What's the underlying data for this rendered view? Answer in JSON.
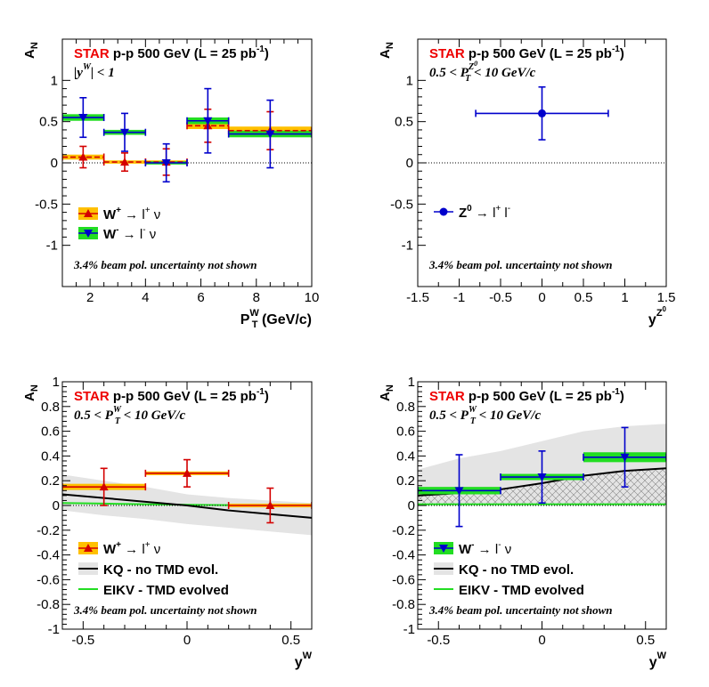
{
  "header": {
    "star": "STAR",
    "collision": "p-p 500 GeV (L = 25 pb",
    "lumi_sup": "-1",
    "close": ")"
  },
  "colors": {
    "w_plus": "#d40000",
    "w_minus": "#0000cc",
    "z0": "#0000cc",
    "w_plus_band": "#ffc000",
    "w_minus_band": "#22dd22",
    "kq_band": "#e4e4e4",
    "kq_line": "#000000",
    "eikv_line": "#22dd22"
  },
  "chart_data": [
    {
      "id": "pt",
      "type": "scatter",
      "ylabel": "A",
      "ylabel_sub": "N",
      "xlabel": "P",
      "xlabel_sub": "T",
      "xlabel_sup": "W",
      "xlabel_unit": "(GeV/c)",
      "cut": "|y",
      "cut_sup": "W",
      "cut_tail": "| < 1",
      "note": "3.4% beam pol. uncertainty not shown",
      "xlim": [
        1,
        10
      ],
      "ylim": [
        -1.5,
        1.5
      ],
      "xticks": [
        "2",
        "4",
        "6",
        "8",
        "10"
      ],
      "yticks": [
        "-1",
        "-0.5",
        "0",
        "0.5",
        "1"
      ],
      "legend": [
        {
          "label": "W",
          "sup": "+",
          "arrow": "→ l",
          "sup2": "+",
          "tail": "ν",
          "series": "W+"
        },
        {
          "label": "W",
          "sup": "-",
          "arrow": "→ l",
          "sup2": "-",
          "tail": "ν",
          "series": "W-"
        }
      ],
      "series": [
        {
          "name": "W+",
          "x": [
            1.75,
            3.25,
            4.75,
            6.25,
            8.5
          ],
          "y": [
            0.07,
            0.01,
            0.01,
            0.45,
            0.39
          ],
          "xerr": [
            0.75,
            0.75,
            0.75,
            0.75,
            1.5
          ],
          "yerr": [
            0.13,
            0.11,
            0.16,
            0.2,
            0.23
          ],
          "sys": [
            0.03,
            0.02,
            0.02,
            0.04,
            0.05
          ]
        },
        {
          "name": "W-",
          "x": [
            1.75,
            3.25,
            4.75,
            6.25,
            8.5
          ],
          "y": [
            0.55,
            0.37,
            0.0,
            0.51,
            0.35
          ],
          "xerr": [
            0.75,
            0.75,
            0.75,
            0.75,
            1.5
          ],
          "yerr": [
            0.24,
            0.23,
            0.23,
            0.39,
            0.41
          ],
          "sys": [
            0.04,
            0.03,
            0.02,
            0.04,
            0.04
          ]
        }
      ]
    },
    {
      "id": "z",
      "type": "scatter",
      "ylabel": "A",
      "ylabel_sub": "N",
      "xlabel": "y",
      "xlabel_sup": "Z",
      "xlabel_sup2": "0",
      "cut": "0.5 < P",
      "cut_sub": "T",
      "cut_sup": "Z",
      "cut_sup2": "0",
      "cut_tail": "< 10 GeV/c",
      "note": "3.4% beam pol. uncertainty not shown",
      "xlim": [
        -1.5,
        1.5
      ],
      "ylim": [
        -1.5,
        1.5
      ],
      "xticks": [
        "-1.5",
        "-1",
        "-0.5",
        "0",
        "0.5",
        "1",
        "1.5"
      ],
      "yticks": [
        "-1",
        "-0.5",
        "0",
        "0.5",
        "1"
      ],
      "legend": [
        {
          "label": "Z",
          "sup": "0",
          "arrow": "→ l",
          "sup2": "+",
          "tail": "l",
          "sup3": "-",
          "series": "Z0"
        }
      ],
      "series": [
        {
          "name": "Z0",
          "x": [
            0.0
          ],
          "y": [
            0.6
          ],
          "xerr": [
            0.8
          ],
          "yerr": [
            0.32
          ]
        }
      ]
    },
    {
      "id": "yplus",
      "type": "scatter",
      "ylabel": "A",
      "ylabel_sub": "N",
      "xlabel": "y",
      "xlabel_sup": "W",
      "cut": "0.5 < P",
      "cut_sub": "T",
      "cut_sup": "W",
      "cut_tail": "< 10 GeV/c",
      "note": "3.4% beam pol. uncertainty not shown",
      "xlim": [
        -0.6,
        0.6
      ],
      "ylim": [
        -1,
        1
      ],
      "xticks": [
        "-0.5",
        "0",
        "0.5"
      ],
      "yticks": [
        "-1",
        "-0.8",
        "-0.6",
        "-0.4",
        "-0.2",
        "0",
        "0.2",
        "0.4",
        "0.6",
        "0.8",
        "1"
      ],
      "legend": [
        {
          "label": "W",
          "sup": "+",
          "arrow": "→ l",
          "sup2": "+",
          "tail": "ν",
          "series": "W+"
        },
        {
          "label": "KQ - no TMD evol.",
          "series": "KQ"
        },
        {
          "label": "EIKV - TMD evolved",
          "series": "EIKV"
        }
      ],
      "series": [
        {
          "name": "W+",
          "x": [
            -0.4,
            0.0,
            0.4
          ],
          "y": [
            0.15,
            0.26,
            0.0
          ],
          "xerr": [
            0.2,
            0.2,
            0.2
          ],
          "yerr": [
            0.15,
            0.11,
            0.14
          ],
          "sys": [
            0.025,
            0.015,
            0.015
          ]
        }
      ],
      "curves": {
        "x": [
          -0.6,
          -0.4,
          -0.2,
          0.0,
          0.2,
          0.4,
          0.6
        ],
        "kq": [
          0.09,
          0.06,
          0.03,
          0.0,
          -0.04,
          -0.07,
          -0.1
        ],
        "kq_low": [
          -0.04,
          -0.08,
          -0.11,
          -0.15,
          -0.18,
          -0.21,
          -0.24
        ],
        "kq_high": [
          0.25,
          0.2,
          0.15,
          0.09,
          0.06,
          0.04,
          0.02
        ],
        "eikv": [
          0.02,
          0.015,
          0.01,
          0.005,
          0.003,
          0.002,
          0.001
        ]
      }
    },
    {
      "id": "yminus",
      "type": "scatter",
      "ylabel": "A",
      "ylabel_sub": "N",
      "xlabel": "y",
      "xlabel_sup": "W",
      "cut": "0.5 < P",
      "cut_sub": "T",
      "cut_sup": "W",
      "cut_tail": "< 10 GeV/c",
      "note": "3.4% beam pol. uncertainty not shown",
      "xlim": [
        -0.6,
        0.6
      ],
      "ylim": [
        -1,
        1
      ],
      "xticks": [
        "-0.5",
        "0",
        "0.5"
      ],
      "yticks": [
        "-1",
        "-0.8",
        "-0.6",
        "-0.4",
        "-0.2",
        "0",
        "0.2",
        "0.4",
        "0.6",
        "0.8",
        "1"
      ],
      "legend": [
        {
          "label": "W",
          "sup": "-",
          "arrow": "→ l",
          "sup2": "-",
          "tail": "ν",
          "series": "W-"
        },
        {
          "label": "KQ - no TMD evol.",
          "series": "KQ"
        },
        {
          "label": "EIKV - TMD evolved",
          "series": "EIKV"
        }
      ],
      "series": [
        {
          "name": "W-",
          "x": [
            -0.4,
            0.0,
            0.4
          ],
          "y": [
            0.12,
            0.23,
            0.39
          ],
          "xerr": [
            0.2,
            0.2,
            0.2
          ],
          "yerr": [
            0.29,
            0.21,
            0.24
          ],
          "sys": [
            0.03,
            0.025,
            0.04
          ]
        }
      ],
      "curves": {
        "x": [
          -0.6,
          -0.4,
          -0.2,
          0.0,
          0.2,
          0.4,
          0.6
        ],
        "kq": [
          0.08,
          0.1,
          0.13,
          0.18,
          0.24,
          0.28,
          0.3
        ],
        "kq_low": [
          0.02,
          0.03,
          0.05,
          0.07,
          0.1,
          0.13,
          0.15
        ],
        "kq_high": [
          0.29,
          0.38,
          0.44,
          0.52,
          0.6,
          0.64,
          0.66
        ],
        "hatch_low": [
          0.0,
          0.0,
          0.0,
          0.0,
          0.0,
          0.0,
          0.0
        ],
        "eikv": [
          0.01,
          0.01,
          0.01,
          0.01,
          0.01,
          0.01,
          0.01
        ]
      }
    }
  ]
}
